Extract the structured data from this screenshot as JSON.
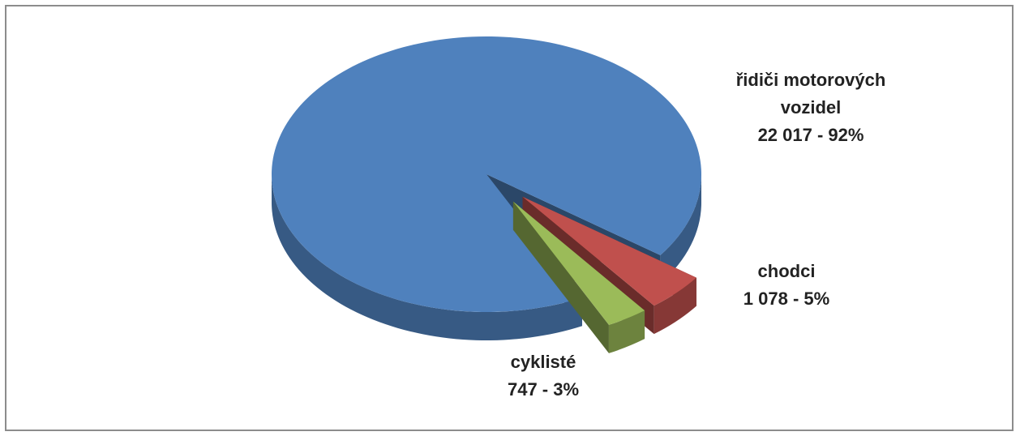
{
  "chart_data": {
    "type": "pie",
    "categories": [
      "řidiči motorových vozidel",
      "chodci",
      "cyklisté"
    ],
    "values": [
      22017,
      1078,
      747
    ],
    "value_labels": [
      "22 017 - 92%",
      "1 078 - 5%",
      "747 - 3%"
    ],
    "colors": [
      "#4f81bd",
      "#c0504d",
      "#9bbb59"
    ]
  }
}
